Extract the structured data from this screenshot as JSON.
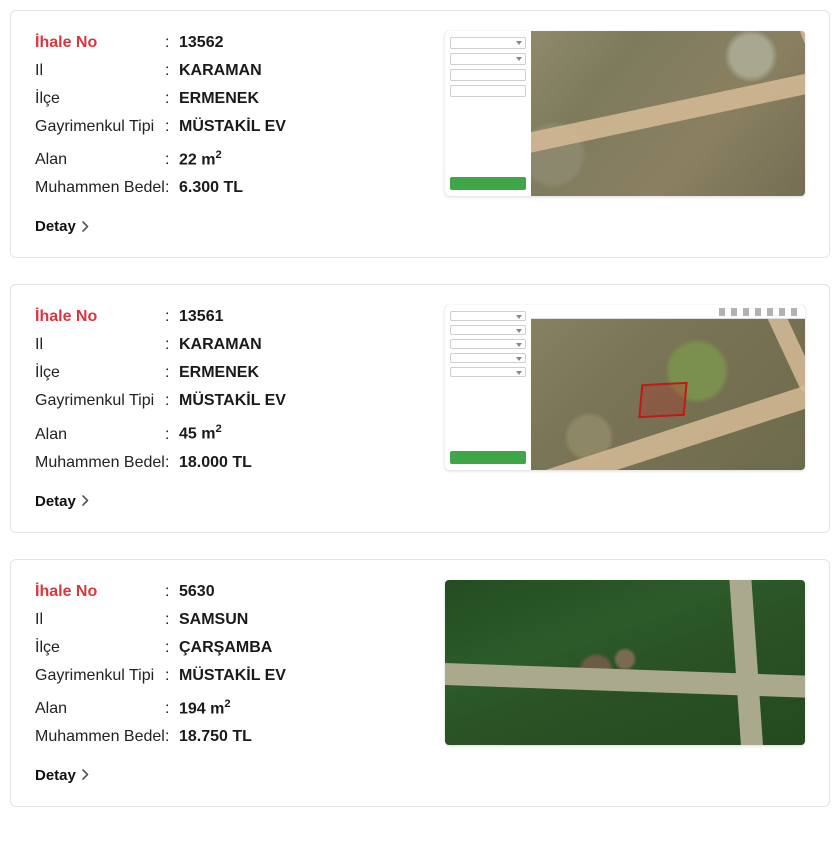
{
  "labels": {
    "ihale_no": "İhale No",
    "il": "Il",
    "ilce": "İlçe",
    "tip": "Gayrimenkul Tipi",
    "alan": "Alan",
    "bedel": "Muhammen Bedel",
    "detay": "Detay",
    "sep": ":"
  },
  "colors": {
    "primary_label": "#d9363e",
    "text": "#1a1a1a",
    "border": "#e4e4e4",
    "panel_button": "#3fa648"
  },
  "listings": [
    {
      "ihale_no": "13562",
      "il": "KARAMAN",
      "ilce": "ERMENEK",
      "tip": "MÜSTAKİL EV",
      "alan": "22 m²",
      "bedel": "6.300 TL",
      "thumb_style": "terrain1",
      "thumb_variant": "panel_simple"
    },
    {
      "ihale_no": "13561",
      "il": "KARAMAN",
      "ilce": "ERMENEK",
      "tip": "MÜSTAKİL EV",
      "alan": "45 m²",
      "bedel": "18.000 TL",
      "thumb_style": "terrain2",
      "thumb_variant": "panel_topbar_outline"
    },
    {
      "ihale_no": "5630",
      "il": "SAMSUN",
      "ilce": "ÇARŞAMBA",
      "tip": "MÜSTAKİL EV",
      "alan": "194 m²",
      "bedel": "18.750 TL",
      "thumb_style": "terrain3",
      "thumb_variant": "satellite_only"
    }
  ]
}
